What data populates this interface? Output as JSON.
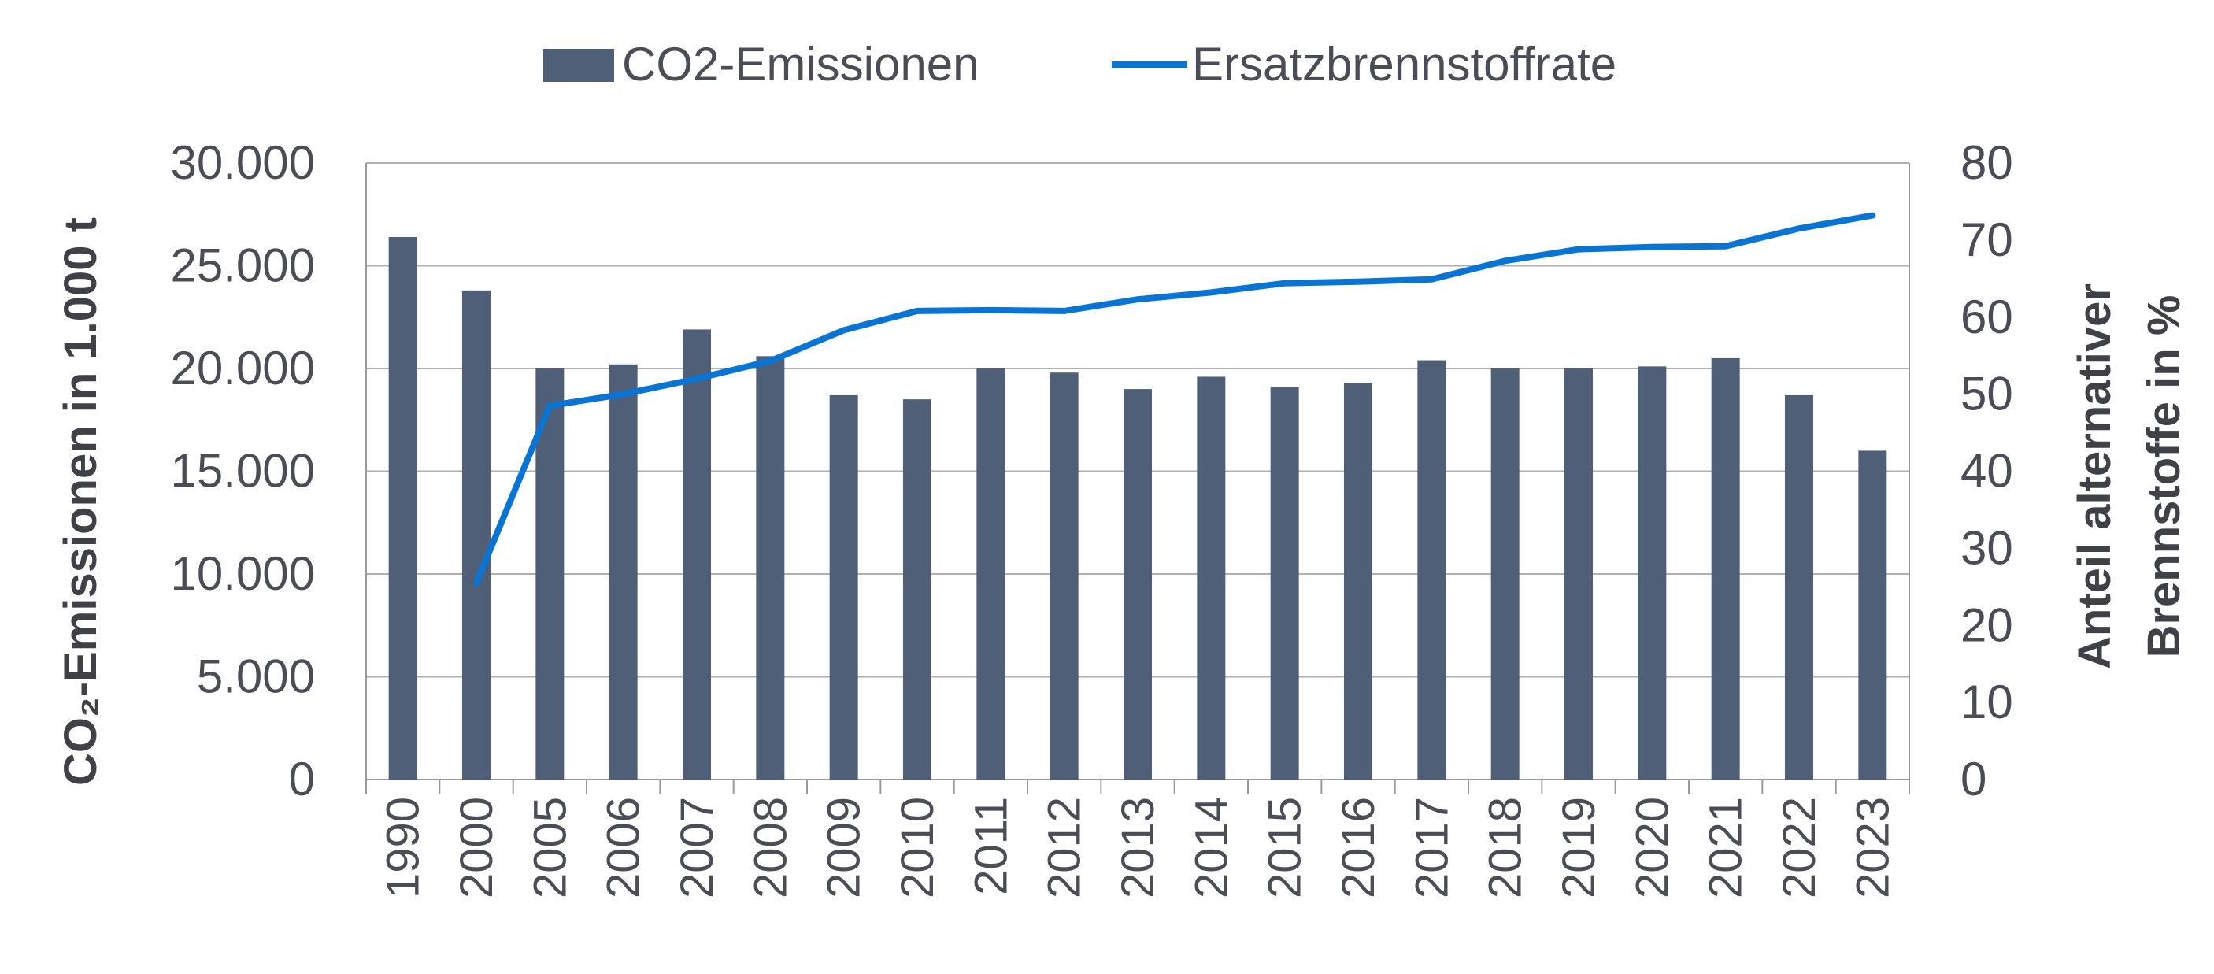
{
  "colors": {
    "bars": "#4f5f78",
    "line": "#0a74d4",
    "grid": "#b0b0b0",
    "axis": "#9a9a9a"
  },
  "chart_data": {
    "type": "bar",
    "categories": [
      "1990",
      "2000",
      "2005",
      "2006",
      "2007",
      "2008",
      "2009",
      "2010",
      "2011",
      "2012",
      "2013",
      "2014",
      "2015",
      "2016",
      "2017",
      "2018",
      "2019",
      "2020",
      "2021",
      "2022",
      "2023"
    ],
    "series": [
      {
        "name": "CO2-Emissionen",
        "type": "bar",
        "axis": "left",
        "values": [
          26400,
          23800,
          20000,
          20200,
          21900,
          20600,
          18700,
          18500,
          20000,
          19800,
          19000,
          19600,
          19100,
          19300,
          20400,
          20000,
          20000,
          20100,
          20500,
          18700,
          16000
        ]
      },
      {
        "name": "Ersatzbrennstoffrate",
        "type": "line",
        "axis": "right",
        "values": [
          null,
          25.5,
          48.5,
          50,
          52,
          54.3,
          58.3,
          60.8,
          60.9,
          60.8,
          62.3,
          63.2,
          64.4,
          64.6,
          64.9,
          67.3,
          68.8,
          69.1,
          69.2,
          71.5,
          73.2
        ]
      }
    ],
    "y_left": {
      "label": "CO₂-Emissionen in 1.000 t",
      "ticks": [
        "0",
        "5.000",
        "10.000",
        "15.000",
        "20.000",
        "25.000",
        "30.000"
      ],
      "range": [
        0,
        30000
      ]
    },
    "y_right": {
      "label_line1": "Anteil alternativer",
      "label_line2": "Brennstoffe in %",
      "ticks": [
        "0",
        "10",
        "20",
        "30",
        "40",
        "50",
        "60",
        "70",
        "80"
      ],
      "range": [
        0,
        80
      ]
    },
    "grid": "horizontal",
    "legend_position": "top"
  }
}
